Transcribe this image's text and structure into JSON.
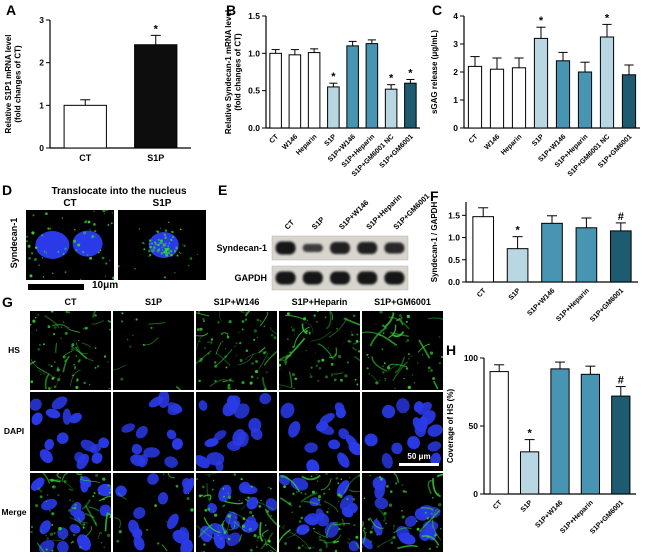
{
  "figure": {
    "panel_labels": [
      "A",
      "B",
      "C",
      "D",
      "E",
      "F",
      "G",
      "H"
    ]
  },
  "colors": {
    "bar_white": "#ffffff",
    "bar_black": "#0d0d0d",
    "bar_light_blue": "#b9d7e3",
    "bar_teal": "#4795b2",
    "bar_dark_teal": "#1e5a70",
    "hs_green": "#35d435",
    "dapi_blue": "#2a3ae8"
  },
  "chart_data": [
    {
      "id": "A",
      "type": "bar",
      "ylabel_lines": [
        "Relative S1P1 mRNA level",
        "(fold changes of CT)"
      ],
      "categories": [
        "CT",
        "S1P"
      ],
      "values": [
        1.0,
        2.42
      ],
      "errors": [
        0.13,
        0.22
      ],
      "sig": [
        "",
        "*"
      ],
      "bar_colors": [
        "bar_white",
        "bar_black"
      ],
      "ylim": [
        0,
        3
      ],
      "yticks": [
        "0",
        "1",
        "2",
        "3"
      ],
      "xtick_rotation": 0,
      "grid": false
    },
    {
      "id": "B",
      "type": "bar",
      "ylabel_lines": [
        "Relative Syndecan-1 mRNA level",
        "(fold changes of CT)"
      ],
      "categories": [
        "CT",
        "W146",
        "Heparin",
        "S1P",
        "S1P+W146",
        "S1P+Heparin",
        "S1P+GM6001 NC",
        "S1P+GM6001"
      ],
      "values": [
        1.0,
        0.98,
        1.01,
        0.55,
        1.1,
        1.13,
        0.52,
        0.6
      ],
      "errors": [
        0.05,
        0.07,
        0.05,
        0.05,
        0.06,
        0.05,
        0.06,
        0.05
      ],
      "sig": [
        "",
        "",
        "",
        "*",
        "",
        "",
        "*",
        "*"
      ],
      "bar_colors": [
        "bar_white",
        "bar_white",
        "bar_white",
        "bar_light_blue",
        "bar_teal",
        "bar_teal",
        "bar_light_blue",
        "bar_dark_teal"
      ],
      "ylim": [
        0,
        1.5
      ],
      "yticks": [
        "0.0",
        "0.5",
        "1.0",
        "1.5"
      ],
      "xtick_rotation": 45,
      "grid": false
    },
    {
      "id": "C",
      "type": "bar",
      "ylabel_lines": [
        "sGAG release (μg/mL)"
      ],
      "categories": [
        "CT",
        "W146",
        "Heparin",
        "S1P",
        "S1P+W146",
        "S1P+Heparin",
        "S1P+GM6001 NC",
        "S1P+GM6001"
      ],
      "values": [
        2.2,
        2.1,
        2.15,
        3.2,
        2.4,
        2.0,
        3.25,
        1.9
      ],
      "errors": [
        0.35,
        0.4,
        0.35,
        0.4,
        0.3,
        0.35,
        0.45,
        0.35
      ],
      "sig": [
        "",
        "",
        "",
        "*",
        "",
        "",
        "*",
        ""
      ],
      "bar_colors": [
        "bar_white",
        "bar_white",
        "bar_white",
        "bar_light_blue",
        "bar_teal",
        "bar_teal",
        "bar_light_blue",
        "bar_dark_teal"
      ],
      "ylim": [
        0,
        4
      ],
      "yticks": [
        "0",
        "1",
        "2",
        "3",
        "4"
      ],
      "xtick_rotation": 45,
      "grid": false
    },
    {
      "id": "F",
      "type": "bar",
      "ylabel_lines": [
        "Syndecan-1 / GAPDH"
      ],
      "categories": [
        "CT",
        "S1P",
        "S1P+W146",
        "S1P+Heparin",
        "S1P+GM6001"
      ],
      "values": [
        1.47,
        0.75,
        1.32,
        1.22,
        1.15
      ],
      "errors": [
        0.2,
        0.27,
        0.17,
        0.22,
        0.18
      ],
      "sig": [
        "",
        "*",
        "",
        "",
        "#"
      ],
      "bar_colors": [
        "bar_white",
        "bar_light_blue",
        "bar_teal",
        "bar_teal",
        "bar_dark_teal"
      ],
      "ylim": [
        0,
        1.8
      ],
      "yticks": [
        "0.0",
        "0.5",
        "1.0",
        "1.5"
      ],
      "xtick_rotation": 45,
      "grid": false
    },
    {
      "id": "H",
      "type": "bar",
      "ylabel_lines": [
        "Coverage of HS (%)"
      ],
      "categories": [
        "CT",
        "S1P",
        "S1P+W146",
        "S1P+Heparin",
        "S1P+GM6001"
      ],
      "values": [
        90,
        31,
        92,
        88,
        72
      ],
      "errors": [
        5,
        9,
        5,
        6,
        7
      ],
      "sig": [
        "",
        "*",
        "",
        "",
        "#"
      ],
      "bar_colors": [
        "bar_white",
        "bar_light_blue",
        "bar_teal",
        "bar_teal",
        "bar_dark_teal"
      ],
      "ylim": [
        0,
        100
      ],
      "yticks": [
        "0",
        "50",
        "100"
      ],
      "xtick_rotation": 45,
      "grid": false
    }
  ],
  "panel_d": {
    "title": "Translocate into the nucleus",
    "row_label": "Syndecan-1",
    "image_labels": [
      "CT",
      "S1P"
    ],
    "scale_bar": "10μm"
  },
  "panel_e": {
    "lane_labels": [
      "CT",
      "S1P",
      "S1P+W146",
      "S1P+Heparin",
      "S1P+GM6001"
    ],
    "row_labels": [
      "Syndecan-1",
      "GAPDH"
    ]
  },
  "panel_g": {
    "col_labels": [
      "CT",
      "S1P",
      "S1P+W146",
      "S1P+Heparin",
      "S1P+GM6001"
    ],
    "row_labels": [
      "HS",
      "DAPI",
      "Merge"
    ],
    "scale_bar": "50 μm"
  }
}
